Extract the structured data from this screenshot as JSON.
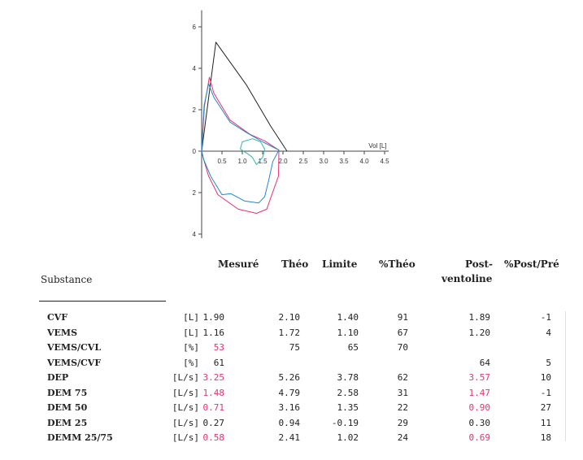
{
  "chart_data": {
    "type": "line",
    "xlabel": "Vol [L]",
    "x_ticks": [
      "0.5",
      "1.0",
      "1.5",
      "2.0",
      "2.5",
      "3.0",
      "3.5",
      "4.0",
      "4.5"
    ],
    "y_ticks_top": [
      "0",
      "2",
      "4",
      "6"
    ],
    "y_ticks_bottom": [
      "2",
      "4"
    ],
    "xlim": [
      0,
      4.6
    ],
    "ylim": [
      -4.2,
      6.8
    ],
    "colors": {
      "theoretical": "#222222",
      "post": "#e8336c",
      "pre": "#1e88d0",
      "aux": "#36b5a8"
    },
    "series": [
      {
        "key": "theoretical",
        "points": [
          [
            0,
            0
          ],
          [
            0.35,
            5.26
          ],
          [
            1.1,
            3.2
          ],
          [
            1.7,
            1.2
          ],
          [
            2.1,
            0
          ]
        ]
      },
      {
        "key": "post",
        "points": [
          [
            0,
            0
          ],
          [
            0.07,
            2.2
          ],
          [
            0.19,
            3.57
          ],
          [
            0.3,
            2.8
          ],
          [
            0.7,
            1.5
          ],
          [
            1.2,
            0.8
          ],
          [
            1.55,
            0.5
          ],
          [
            1.9,
            0.05
          ],
          [
            1.89,
            -1.2
          ],
          [
            1.6,
            -2.8
          ],
          [
            1.35,
            -3.0
          ],
          [
            0.9,
            -2.8
          ],
          [
            0.4,
            -2.1
          ],
          [
            0.17,
            -1.2
          ],
          [
            0.05,
            -0.4
          ],
          [
            0,
            0
          ]
        ]
      },
      {
        "key": "pre",
        "points": [
          [
            0,
            0
          ],
          [
            0.06,
            2.2
          ],
          [
            0.17,
            3.25
          ],
          [
            0.3,
            2.6
          ],
          [
            0.7,
            1.4
          ],
          [
            1.1,
            0.9
          ],
          [
            1.5,
            0.45
          ],
          [
            1.9,
            0.05
          ],
          [
            1.75,
            -0.5
          ],
          [
            1.65,
            -1.4
          ],
          [
            1.55,
            -2.2
          ],
          [
            1.4,
            -2.5
          ],
          [
            1.05,
            -2.4
          ],
          [
            0.72,
            -2.05
          ],
          [
            0.5,
            -2.1
          ],
          [
            0.22,
            -1.2
          ],
          [
            0.05,
            -0.4
          ],
          [
            0,
            0
          ]
        ]
      },
      {
        "key": "aux",
        "points": [
          [
            0.95,
            0.1
          ],
          [
            1.0,
            0.45
          ],
          [
            1.25,
            0.6
          ],
          [
            1.45,
            0.45
          ],
          [
            1.55,
            0.1
          ],
          [
            1.5,
            -0.3
          ],
          [
            1.35,
            -0.65
          ],
          [
            1.25,
            -0.3
          ],
          [
            1.15,
            -0.15
          ],
          [
            0.95,
            0.1
          ]
        ]
      }
    ]
  },
  "table": {
    "substance_label": "Substance",
    "headers": {
      "mesure": "Mesuré",
      "theo": "Théo",
      "limite": "Limite",
      "pct_theo": "%Théo",
      "post_line1": "Post-",
      "post_line2": "ventoline",
      "pct_post_pre": "%Post/Pré"
    },
    "rows": [
      {
        "name": "CVF",
        "unit": "[L]",
        "mesure": "1.90",
        "mesure_abnormal": false,
        "theo": "2.10",
        "limite": "1.40",
        "pct_theo": "91",
        "post": "1.89",
        "post_abnormal": false,
        "pct_post_pre": "-1"
      },
      {
        "name": "VEMS",
        "unit": "[L]",
        "mesure": "1.16",
        "mesure_abnormal": false,
        "theo": "1.72",
        "limite": "1.10",
        "pct_theo": "67",
        "post": "1.20",
        "post_abnormal": false,
        "pct_post_pre": "4"
      },
      {
        "name": "VEMS/CVL",
        "unit": "[%]",
        "mesure": "53",
        "mesure_abnormal": true,
        "theo": "75",
        "limite": "65",
        "pct_theo": "70",
        "post": "",
        "post_abnormal": false,
        "pct_post_pre": ""
      },
      {
        "name": "VEMS/CVF",
        "unit": "[%]",
        "mesure": "61",
        "mesure_abnormal": false,
        "theo": "",
        "limite": "",
        "pct_theo": "",
        "post": "64",
        "post_abnormal": false,
        "pct_post_pre": "5"
      },
      {
        "name": "DEP",
        "unit": "[L/s]",
        "mesure": "3.25",
        "mesure_abnormal": true,
        "theo": "5.26",
        "limite": "3.78",
        "pct_theo": "62",
        "post": "3.57",
        "post_abnormal": true,
        "pct_post_pre": "10"
      },
      {
        "name": "DEM 75",
        "unit": "[L/s]",
        "mesure": "1.48",
        "mesure_abnormal": true,
        "theo": "4.79",
        "limite": "2.58",
        "pct_theo": "31",
        "post": "1.47",
        "post_abnormal": true,
        "pct_post_pre": "-1"
      },
      {
        "name": "DEM 50",
        "unit": "[L/s]",
        "mesure": "0.71",
        "mesure_abnormal": true,
        "theo": "3.16",
        "limite": "1.35",
        "pct_theo": "22",
        "post": "0.90",
        "post_abnormal": true,
        "pct_post_pre": "27"
      },
      {
        "name": "DEM 25",
        "unit": "[L/s]",
        "mesure": "0.27",
        "mesure_abnormal": false,
        "theo": "0.94",
        "limite": "-0.19",
        "pct_theo": "29",
        "post": "0.30",
        "post_abnormal": false,
        "pct_post_pre": "11"
      },
      {
        "name": "DEMM 25/75",
        "unit": "[L/s]",
        "mesure": "0.58",
        "mesure_abnormal": true,
        "theo": "2.41",
        "limite": "1.02",
        "pct_theo": "24",
        "post": "0.69",
        "post_abnormal": true,
        "pct_post_pre": "18"
      }
    ]
  }
}
